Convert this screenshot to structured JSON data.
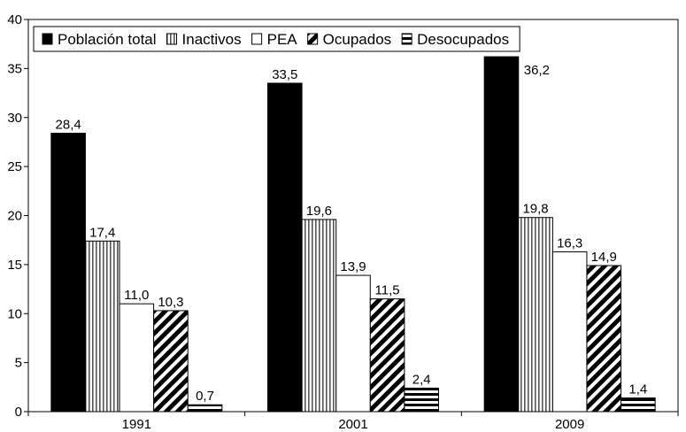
{
  "chart_data": {
    "type": "bar",
    "title": "",
    "xlabel": "",
    "ylabel": "",
    "categories": [
      "1991",
      "2001",
      "2009"
    ],
    "series": [
      {
        "name": "Población total",
        "values": [
          28.4,
          33.5,
          36.2
        ],
        "labels": [
          "28,4",
          "33,5",
          "36,2"
        ],
        "pattern": "solid"
      },
      {
        "name": "Inactivos",
        "values": [
          17.4,
          19.6,
          19.8
        ],
        "labels": [
          "17,4",
          "19,6",
          "19,8"
        ],
        "pattern": "vertical-lines"
      },
      {
        "name": "PEA",
        "values": [
          11.0,
          13.9,
          16.3
        ],
        "labels": [
          "11,0",
          "13,9",
          "16,3"
        ],
        "pattern": "white"
      },
      {
        "name": "Ocupados",
        "values": [
          10.3,
          11.5,
          14.9
        ],
        "labels": [
          "10,3",
          "11,5",
          "14,9"
        ],
        "pattern": "diagonal-lines"
      },
      {
        "name": "Desocupados",
        "values": [
          0.7,
          2.4,
          1.4
        ],
        "labels": [
          "0,7",
          "2,4",
          "1,4"
        ],
        "pattern": "horizontal-lines"
      }
    ],
    "ylim": [
      0,
      40
    ],
    "yticks": [
      0,
      5,
      10,
      15,
      20,
      25,
      30,
      35,
      40
    ],
    "grid": false,
    "legend_position": "top"
  }
}
